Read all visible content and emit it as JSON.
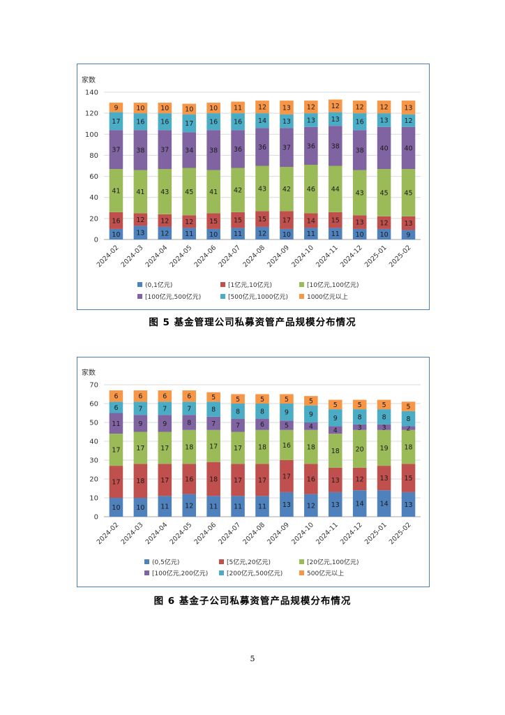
{
  "chart_data": [
    {
      "type": "bar",
      "stacked": true,
      "title": "",
      "ylabel": "家数",
      "xlabel": "",
      "ylim": [
        0,
        140
      ],
      "yticks": [
        0,
        20,
        40,
        60,
        80,
        100,
        120,
        140
      ],
      "grid": true,
      "legend_position": "bottom",
      "categories": [
        "2024-02",
        "2024-03",
        "2024-04",
        "2024-05",
        "2024-06",
        "2024-07",
        "2024-08",
        "2024-09",
        "2024-10",
        "2024-11",
        "2024-12",
        "2025-01",
        "2025-02"
      ],
      "series": [
        {
          "name": "(0,1亿元)",
          "color": "#4f81bd",
          "values": [
            10,
            13,
            12,
            11,
            10,
            11,
            12,
            10,
            11,
            11,
            10,
            10,
            9
          ]
        },
        {
          "name": "[1亿元,10亿元)",
          "color": "#c0504d",
          "values": [
            16,
            12,
            12,
            12,
            15,
            15,
            15,
            17,
            14,
            15,
            13,
            12,
            13
          ]
        },
        {
          "name": "[10亿元,100亿元)",
          "color": "#9bbb59",
          "values": [
            41,
            41,
            43,
            45,
            41,
            42,
            43,
            42,
            46,
            44,
            43,
            45,
            45
          ]
        },
        {
          "name": "[100亿元,500亿元)",
          "color": "#8064a2",
          "values": [
            37,
            38,
            37,
            34,
            38,
            36,
            36,
            37,
            36,
            38,
            38,
            40,
            40
          ]
        },
        {
          "name": "[500亿元,1000亿元)",
          "color": "#4bacc6",
          "values": [
            17,
            16,
            16,
            17,
            16,
            16,
            14,
            13,
            13,
            13,
            16,
            13,
            12
          ]
        },
        {
          "name": "1000亿元以上",
          "color": "#f79646",
          "values": [
            9,
            10,
            10,
            10,
            10,
            11,
            12,
            13,
            12,
            12,
            12,
            12,
            13
          ]
        }
      ]
    },
    {
      "type": "bar",
      "stacked": true,
      "title": "",
      "ylabel": "家数",
      "xlabel": "",
      "ylim": [
        0,
        70
      ],
      "yticks": [
        0,
        10,
        20,
        30,
        40,
        50,
        60,
        70
      ],
      "grid": true,
      "legend_position": "bottom",
      "categories": [
        "2024-02",
        "2024-03",
        "2024-04",
        "2024-05",
        "2024-06",
        "2024-07",
        "2024-08",
        "2024-09",
        "2024-10",
        "2024-11",
        "2024-12",
        "2025-01",
        "2025-02"
      ],
      "series": [
        {
          "name": "(0,5亿元)",
          "color": "#4f81bd",
          "values": [
            10,
            10,
            11,
            12,
            11,
            11,
            11,
            13,
            12,
            13,
            14,
            14,
            13
          ]
        },
        {
          "name": "[5亿元,20亿元)",
          "color": "#c0504d",
          "values": [
            17,
            18,
            17,
            16,
            18,
            17,
            17,
            17,
            16,
            13,
            12,
            13,
            15
          ]
        },
        {
          "name": "[20亿元,100亿元)",
          "color": "#9bbb59",
          "values": [
            17,
            17,
            17,
            18,
            17,
            17,
            18,
            16,
            18,
            18,
            20,
            19,
            18
          ]
        },
        {
          "name": "[100亿元,200亿元)",
          "color": "#8064a2",
          "values": [
            11,
            9,
            9,
            8,
            7,
            7,
            6,
            5,
            4,
            4,
            3,
            3,
            2
          ]
        },
        {
          "name": "[200亿元,500亿元)",
          "color": "#4bacc6",
          "values": [
            6,
            7,
            7,
            7,
            8,
            8,
            8,
            9,
            9,
            9,
            8,
            8,
            8
          ]
        },
        {
          "name": "500亿元以上",
          "color": "#f79646",
          "values": [
            6,
            6,
            6,
            6,
            5,
            5,
            5,
            5,
            5,
            5,
            5,
            5,
            5
          ]
        }
      ]
    }
  ],
  "captions": {
    "fig5": "图 5   基金管理公司私募资管产品规模分布情况",
    "fig6": "图 6   基金子公司私募资管产品规模分布情况"
  },
  "page_number": "5"
}
